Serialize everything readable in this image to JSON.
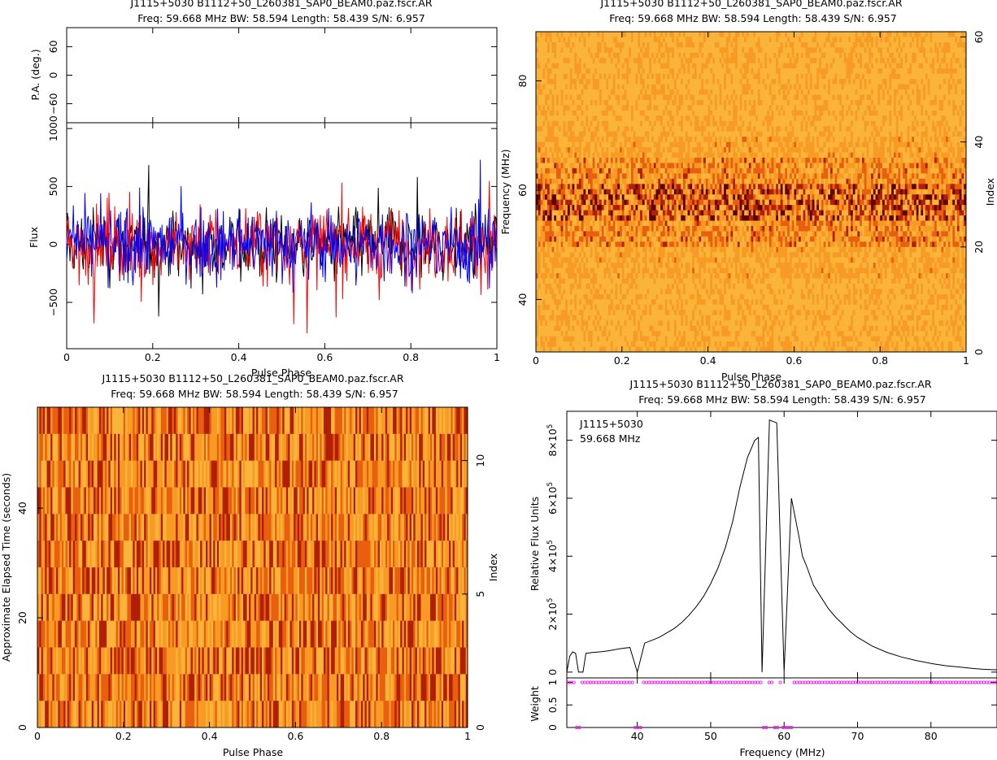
{
  "chart_data": [
    {
      "type": "line",
      "title": "J1115+5030  B1112+50_L260381_SAP0_BEAM0.paz.fscr.AR",
      "subtitle": "Freq: 59.668 MHz BW: 58.594 Length: 58.439 S/N: 6.957",
      "panels": [
        {
          "ylabel": "P.A. (deg.)",
          "ylim": [
            -100,
            100
          ],
          "yticks": [
            -60,
            0,
            60
          ],
          "ytick_labels": [
            "−60",
            "0",
            "60"
          ]
        },
        {
          "ylabel": "Flux",
          "ylim": [
            -900,
            1050
          ],
          "yticks": [
            -500,
            0,
            500,
            1000
          ],
          "ytick_labels": [
            "−500",
            "0",
            "500",
            "1000"
          ],
          "series": [
            {
              "color": "#ff0000",
              "values": [
                0
              ]
            },
            {
              "color": "#000000",
              "values": [
                0
              ]
            },
            {
              "color": "#0000ff",
              "values": [
                0
              ]
            }
          ]
        }
      ],
      "xlabel": "Pulse Phase",
      "xlim": [
        0,
        1
      ],
      "xticks": [
        0,
        0.2,
        0.4,
        0.6,
        0.8,
        1
      ],
      "xtick_labels": [
        "0",
        "0.2",
        "0.4",
        "0.6",
        "0.8",
        "1"
      ]
    },
    {
      "type": "heatmap",
      "title": "J1115+5030  B1112+50_L260381_SAP0_BEAM0.paz.fscr.AR",
      "subtitle": "Freq: 59.668 MHz BW: 58.594 Length: 58.439 S/N: 6.957",
      "xlabel": "Pulse Phase",
      "ylabel": "Frequency (MHz)",
      "y2label": "Index",
      "xlim": [
        0,
        1
      ],
      "ylim": [
        30.4,
        89
      ],
      "y2lim": [
        0,
        61
      ],
      "xticks": [
        0,
        0.2,
        0.4,
        0.6,
        0.8,
        1
      ],
      "xtick_labels": [
        "0",
        "0.2",
        "0.4",
        "0.6",
        "0.8",
        "1"
      ],
      "yticks": [
        40,
        60,
        80
      ],
      "ytick_labels": [
        "40",
        "60",
        "80"
      ],
      "y2ticks": [
        0,
        20,
        40,
        60
      ],
      "y2tick_labels": [
        "0",
        "20",
        "40",
        "60"
      ],
      "colormap": [
        "#fbb43a",
        "#f79b24",
        "#e8600f",
        "#b01f06",
        "#5a0000"
      ]
    },
    {
      "type": "heatmap",
      "title": "J1115+5030  B1112+50_L260381_SAP0_BEAM0.paz.fscr.AR",
      "subtitle": "Freq: 59.668 MHz BW: 58.594 Length: 58.439 S/N: 6.957",
      "xlabel": "Pulse Phase",
      "ylabel": "Approximate Elapsed Time (seconds)",
      "y2label": "Index",
      "xlim": [
        0,
        1
      ],
      "ylim": [
        0,
        58.4
      ],
      "y2lim": [
        0,
        12
      ],
      "xticks": [
        0,
        0.2,
        0.4,
        0.6,
        0.8,
        1
      ],
      "xtick_labels": [
        "0",
        "0.2",
        "0.4",
        "0.6",
        "0.8",
        "1"
      ],
      "yticks": [
        0,
        20,
        40
      ],
      "ytick_labels": [
        "0",
        "20",
        "40"
      ],
      "y2ticks": [
        0,
        5,
        10
      ],
      "y2tick_labels": [
        "0",
        "5",
        "10"
      ],
      "colormap": [
        "#fbb43a",
        "#f79b24",
        "#e8600f",
        "#b01f06",
        "#5a0000"
      ]
    },
    {
      "type": "line",
      "title": "J1115+5030  B1112+50_L260381_SAP0_BEAM0.paz.fscr.AR",
      "subtitle": "Freq: 59.668 MHz BW: 58.594 Length: 58.439 S/N: 6.957",
      "annotation": [
        "J1115+5030",
        "59.668 MHz"
      ],
      "xlabel": "Frequency (MHz)",
      "xlim": [
        30.4,
        89
      ],
      "xticks": [
        40,
        50,
        60,
        70,
        80
      ],
      "xtick_labels": [
        "40",
        "50",
        "60",
        "70",
        "80"
      ],
      "panels": [
        {
          "ylabel": "Relative Flux Units",
          "ylim": [
            -20000,
            900000
          ],
          "yticks": [
            0,
            200000,
            400000,
            600000,
            800000
          ],
          "ytick_labels": [
            [
              "0",
              ""
            ],
            [
              "2×10",
              "5"
            ],
            [
              "4×10",
              "5"
            ],
            [
              "6×10",
              "5"
            ],
            [
              "8×10",
              "5"
            ]
          ],
          "spectrum": {
            "x": [
              30.4,
              30.8,
              31.2,
              31.6,
              32.0,
              32.6,
              33,
              34,
              35,
              36,
              37,
              38,
              39,
              40,
              41,
              42,
              43,
              44,
              45,
              46,
              47,
              48,
              49,
              50,
              51,
              52,
              53,
              54,
              55,
              56,
              56.5,
              57,
              58,
              59,
              60,
              61,
              62,
              62.5,
              63,
              64,
              65,
              66,
              67,
              68,
              69,
              70,
              71,
              72,
              74,
              76,
              78,
              80,
              82,
              84,
              86,
              87,
              88,
              89
            ],
            "y": [
              0,
              55000,
              70000,
              65000,
              0,
              0,
              65000,
              68000,
              70000,
              73000,
              78000,
              82000,
              85000,
              0,
              100000,
              110000,
              120000,
              135000,
              150000,
              170000,
              195000,
              225000,
              260000,
              305000,
              360000,
              430000,
              520000,
              640000,
              740000,
              800000,
              810000,
              0,
              870000,
              860000,
              0,
              600000,
              470000,
              400000,
              370000,
              300000,
              260000,
              220000,
              190000,
              165000,
              140000,
              120000,
              105000,
              90000,
              68000,
              52000,
              40000,
              30000,
              22000,
              17000,
              12000,
              10000,
              9000,
              8000
            ],
            "gaps": [
              [
                32.0,
                32.6
              ],
              [
                39.9,
                40.3
              ],
              [
                57.1,
                57.6
              ],
              [
                58.5,
                59.0
              ],
              [
                59.8,
                60.6
              ],
              [
                61.0,
                61.3
              ]
            ]
          }
        },
        {
          "ylabel": "Weight",
          "ylim": [
            0,
            1.1
          ],
          "yticks": [
            0,
            0.5,
            1
          ],
          "ytick_labels": [
            "0",
            "0.5",
            "1"
          ],
          "marker_color": "#ff00ff",
          "zero_weight_ranges": [
            [
              31.5,
              32.4
            ],
            [
              39.6,
              40.8
            ],
            [
              57.1,
              57.9
            ],
            [
              58.4,
              59.2
            ],
            [
              59.6,
              61.3
            ]
          ]
        }
      ]
    }
  ]
}
